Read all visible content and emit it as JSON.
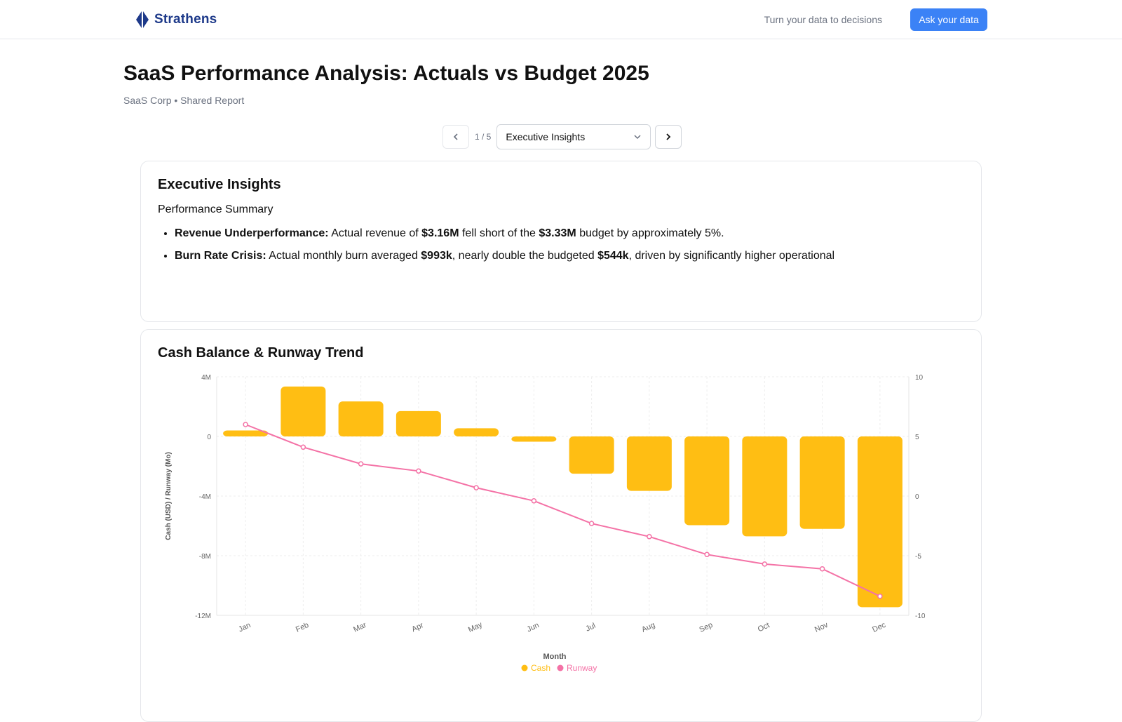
{
  "header": {
    "brand": "Strathens",
    "tagline": "Turn your data to decisions",
    "ask_label": "Ask your data"
  },
  "report": {
    "title": "SaaS Performance Analysis: Actuals vs Budget 2025",
    "subtitle": "SaaS Corp • Shared Report"
  },
  "pager": {
    "count": "1 / 5",
    "selected": "Executive Insights",
    "prev_icon": "chevron-left-icon",
    "next_icon": "chevron-right-icon"
  },
  "insights": {
    "title": "Executive Insights",
    "summary_heading": "Performance Summary",
    "bullets": [
      {
        "lead": "Revenue Underperformance:",
        "t1": " Actual revenue of ",
        "b1": "$3.16M",
        "t2": " fell short of the ",
        "b2": "$3.33M",
        "t3": " budget by approximately 5%."
      },
      {
        "lead": "Burn Rate Crisis:",
        "t1": " Actual monthly burn averaged ",
        "b1": "$993k",
        "t2": ", nearly double the budgeted ",
        "b2": "$544k",
        "t3": ", driven by significantly higher operational"
      }
    ]
  },
  "chart_card": {
    "title": "Cash Balance & Runway Trend"
  },
  "colors": {
    "accent": "#3b82f6",
    "brand": "#1e3a8a",
    "cash": "#FFBE13",
    "runway": "#F472A6"
  },
  "chart_data": {
    "type": "bar",
    "categories": [
      "Jan",
      "Feb",
      "Mar",
      "Apr",
      "May",
      "Jun",
      "Jul",
      "Aug",
      "Sep",
      "Oct",
      "Nov",
      "Dec"
    ],
    "series": [
      {
        "name": "Cash",
        "type": "bar",
        "axis": "left",
        "values": [
          400000,
          3350000,
          2350000,
          1700000,
          550000,
          -350000,
          -2500000,
          -3650000,
          -5950000,
          -6700000,
          -6200000,
          -11450000
        ]
      },
      {
        "name": "Runway",
        "type": "line",
        "axis": "right",
        "values": [
          6.0,
          4.1,
          2.7,
          2.1,
          0.7,
          -0.4,
          -2.3,
          -3.4,
          -4.9,
          -5.7,
          -6.1,
          -8.4
        ]
      }
    ],
    "xlabel": "Month",
    "ylabel": "Cash (USD) / Runway (Mo)",
    "ylim": [
      -12000000,
      4000000
    ],
    "y2lim": [
      -10,
      10
    ],
    "yticks": [
      "4M",
      "0",
      "-4M",
      "-8M",
      "-12M"
    ],
    "y2ticks": [
      "10",
      "5",
      "0",
      "-5",
      "-10"
    ],
    "legend": "bottom-center",
    "grid": true
  }
}
